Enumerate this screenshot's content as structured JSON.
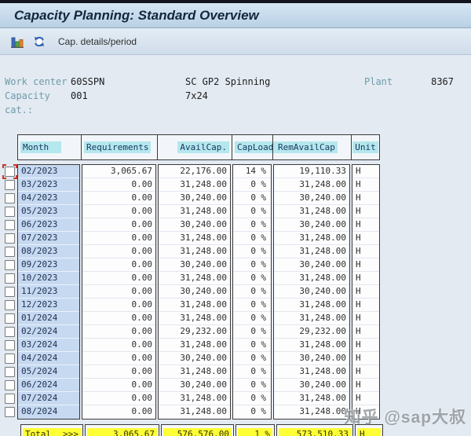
{
  "window": {
    "title": "Capacity Planning: Standard Overview"
  },
  "toolbar": {
    "icons": [
      {
        "name": "bar-chart-icon"
      },
      {
        "name": "refresh-choose-icon"
      }
    ],
    "cap_details_label": "Cap. details/period"
  },
  "info": {
    "line1": {
      "label": "Work center",
      "value": "60SSPN",
      "desc": "SC GP2 Spinning",
      "label2": "Plant",
      "value2": "8367"
    },
    "line2": {
      "label": "Capacity cat.:",
      "value": "001",
      "desc": "7x24"
    }
  },
  "table": {
    "columns": [
      "Month",
      "Requirements",
      "AvailCap.",
      "CapLoad",
      "RemAvailCap",
      "Unit"
    ],
    "cap_load_suffix": "%",
    "rows": [
      {
        "month": "02/2023",
        "requirements": "3,065.67",
        "avail_cap": "22,176.00",
        "cap_load": "14",
        "rem_avail_cap": "19,110.33",
        "unit": "H"
      },
      {
        "month": "03/2023",
        "requirements": "0.00",
        "avail_cap": "31,248.00",
        "cap_load": "0",
        "rem_avail_cap": "31,248.00",
        "unit": "H"
      },
      {
        "month": "04/2023",
        "requirements": "0.00",
        "avail_cap": "30,240.00",
        "cap_load": "0",
        "rem_avail_cap": "30,240.00",
        "unit": "H"
      },
      {
        "month": "05/2023",
        "requirements": "0.00",
        "avail_cap": "31,248.00",
        "cap_load": "0",
        "rem_avail_cap": "31,248.00",
        "unit": "H"
      },
      {
        "month": "06/2023",
        "requirements": "0.00",
        "avail_cap": "30,240.00",
        "cap_load": "0",
        "rem_avail_cap": "30,240.00",
        "unit": "H"
      },
      {
        "month": "07/2023",
        "requirements": "0.00",
        "avail_cap": "31,248.00",
        "cap_load": "0",
        "rem_avail_cap": "31,248.00",
        "unit": "H"
      },
      {
        "month": "08/2023",
        "requirements": "0.00",
        "avail_cap": "31,248.00",
        "cap_load": "0",
        "rem_avail_cap": "31,248.00",
        "unit": "H"
      },
      {
        "month": "09/2023",
        "requirements": "0.00",
        "avail_cap": "30,240.00",
        "cap_load": "0",
        "rem_avail_cap": "30,240.00",
        "unit": "H"
      },
      {
        "month": "10/2023",
        "requirements": "0.00",
        "avail_cap": "31,248.00",
        "cap_load": "0",
        "rem_avail_cap": "31,248.00",
        "unit": "H"
      },
      {
        "month": "11/2023",
        "requirements": "0.00",
        "avail_cap": "30,240.00",
        "cap_load": "0",
        "rem_avail_cap": "30,240.00",
        "unit": "H"
      },
      {
        "month": "12/2023",
        "requirements": "0.00",
        "avail_cap": "31,248.00",
        "cap_load": "0",
        "rem_avail_cap": "31,248.00",
        "unit": "H"
      },
      {
        "month": "01/2024",
        "requirements": "0.00",
        "avail_cap": "31,248.00",
        "cap_load": "0",
        "rem_avail_cap": "31,248.00",
        "unit": "H"
      },
      {
        "month": "02/2024",
        "requirements": "0.00",
        "avail_cap": "29,232.00",
        "cap_load": "0",
        "rem_avail_cap": "29,232.00",
        "unit": "H"
      },
      {
        "month": "03/2024",
        "requirements": "0.00",
        "avail_cap": "31,248.00",
        "cap_load": "0",
        "rem_avail_cap": "31,248.00",
        "unit": "H"
      },
      {
        "month": "04/2024",
        "requirements": "0.00",
        "avail_cap": "30,240.00",
        "cap_load": "0",
        "rem_avail_cap": "30,240.00",
        "unit": "H"
      },
      {
        "month": "05/2024",
        "requirements": "0.00",
        "avail_cap": "31,248.00",
        "cap_load": "0",
        "rem_avail_cap": "31,248.00",
        "unit": "H"
      },
      {
        "month": "06/2024",
        "requirements": "0.00",
        "avail_cap": "30,240.00",
        "cap_load": "0",
        "rem_avail_cap": "30,240.00",
        "unit": "H"
      },
      {
        "month": "07/2024",
        "requirements": "0.00",
        "avail_cap": "31,248.00",
        "cap_load": "0",
        "rem_avail_cap": "31,248.00",
        "unit": "H"
      },
      {
        "month": "08/2024",
        "requirements": "0.00",
        "avail_cap": "31,248.00",
        "cap_load": "0",
        "rem_avail_cap": "31,248.00",
        "unit": "H"
      }
    ],
    "total": {
      "label": "Total",
      "arrows": ">>>",
      "requirements": "3,065.67",
      "avail_cap": "576,576.00",
      "cap_load": "1",
      "rem_avail_cap": "573,510.33",
      "unit": "H"
    }
  },
  "watermark": "知乎 @sap大叔",
  "colors": {
    "header_highlight": "#b4e7ee",
    "month_cell": "#c6d9f1",
    "total_highlight": "#ffff35",
    "title_text": "#13263c",
    "info_label": "#6f9bab"
  }
}
